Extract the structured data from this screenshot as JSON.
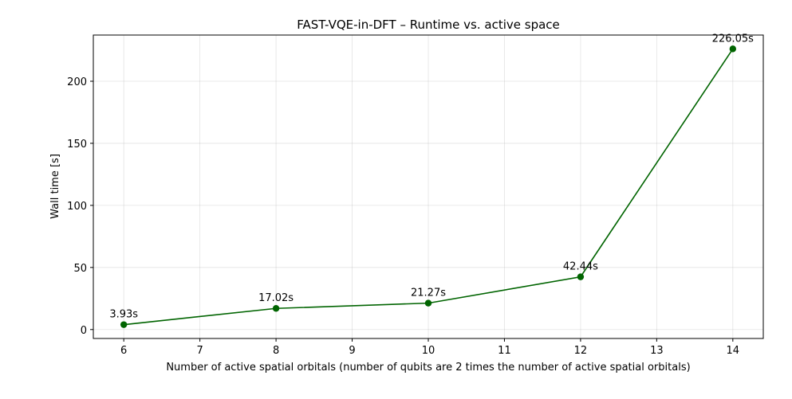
{
  "chart_data": {
    "type": "line",
    "title": "FAST-VQE-in-DFT – Runtime vs. active space",
    "xlabel": "Number of active spatial orbitals (number of qubits are 2 times the number of active spatial orbitals)",
    "ylabel": "Wall time [s]",
    "xlim": [
      5.6,
      14.4
    ],
    "ylim": [
      -7.2,
      237.2
    ],
    "xticks": [
      6,
      7,
      8,
      9,
      10,
      11,
      12,
      13,
      14
    ],
    "yticks": [
      0,
      50,
      100,
      150,
      200
    ],
    "grid": true,
    "series": [
      {
        "color": "#006400",
        "marker": "circle",
        "x": [
          6,
          8,
          10,
          12,
          14
        ],
        "y": [
          3.93,
          17.02,
          21.27,
          42.44,
          226.05
        ],
        "labels": [
          "3.93s",
          "17.02s",
          "21.27s",
          "42.44s",
          "226.05s"
        ]
      }
    ]
  }
}
